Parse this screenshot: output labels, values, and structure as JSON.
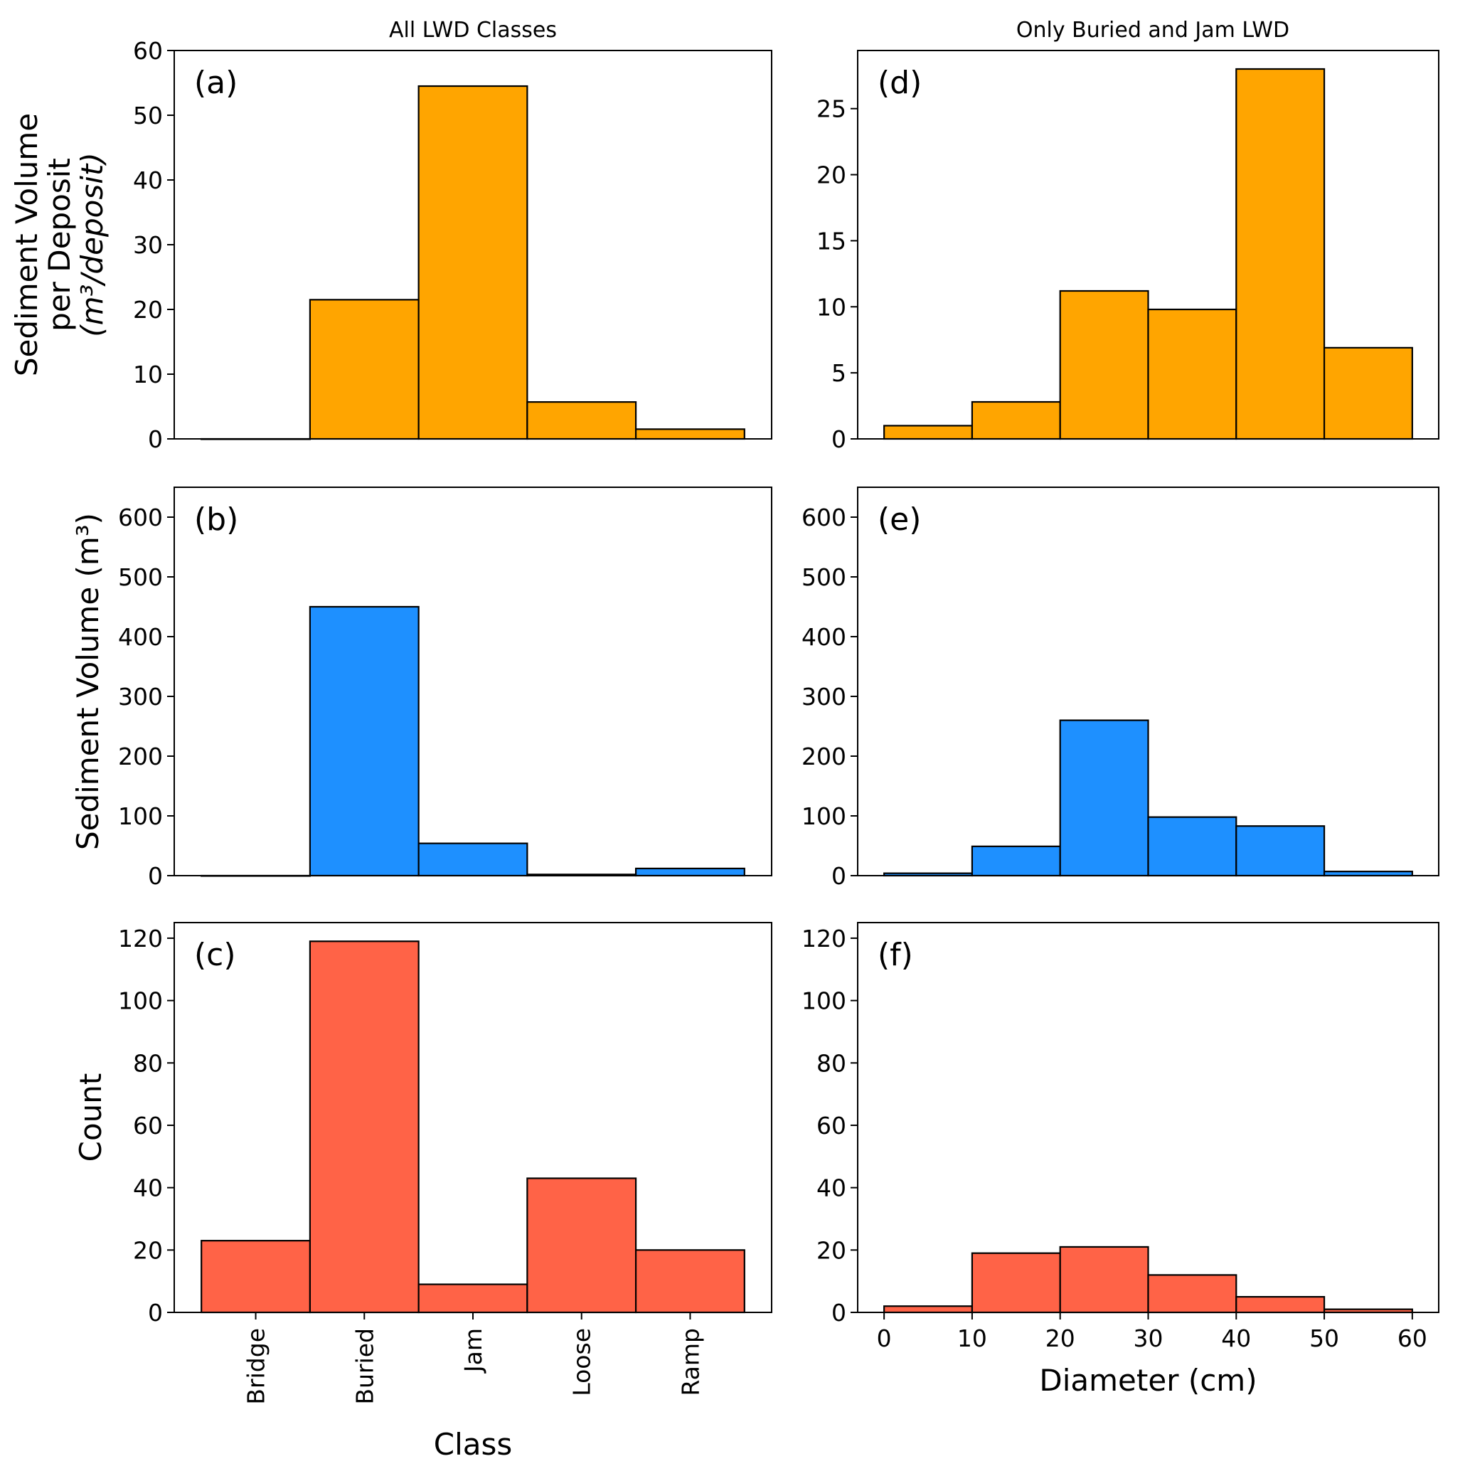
{
  "column_titles": [
    "All LWD Classes",
    "Only Buried and Jam LWD"
  ],
  "colors": {
    "orange": "#FFA500",
    "blue": "#1E90FF",
    "red": "#FF6347",
    "edge": "#000000"
  },
  "chart_data": [
    {
      "id": "a",
      "panel_label": "(a)",
      "type": "bar",
      "categories": [
        "Bridge",
        "Buried",
        "Jam",
        "Loose",
        "Ramp"
      ],
      "values": [
        0,
        21.5,
        54.5,
        5.7,
        1.5
      ],
      "color_key": "orange",
      "ylabel_lines": [
        "Sediment Volume",
        "per Deposit",
        "(m³/deposit)"
      ],
      "xlabel": "",
      "ylim": [
        0,
        60
      ],
      "yticks": [
        0,
        10,
        20,
        30,
        40,
        50,
        60
      ],
      "show_xticklabels": false
    },
    {
      "id": "b",
      "panel_label": "(b)",
      "type": "bar",
      "categories": [
        "Bridge",
        "Buried",
        "Jam",
        "Loose",
        "Ramp"
      ],
      "values": [
        0,
        450,
        54,
        2,
        12
      ],
      "color_key": "blue",
      "ylabel_lines": [
        "Sediment Volume (m³)"
      ],
      "xlabel": "",
      "ylim": [
        0,
        650
      ],
      "yticks": [
        0,
        100,
        200,
        300,
        400,
        500,
        600
      ],
      "show_xticklabels": false
    },
    {
      "id": "c",
      "panel_label": "(c)",
      "type": "bar",
      "categories": [
        "Bridge",
        "Buried",
        "Jam",
        "Loose",
        "Ramp"
      ],
      "values": [
        23,
        119,
        9,
        43,
        20
      ],
      "color_key": "red",
      "ylabel_lines": [
        "Count"
      ],
      "xlabel": "Class",
      "ylim": [
        0,
        125
      ],
      "yticks": [
        0,
        20,
        40,
        60,
        80,
        100,
        120
      ],
      "show_xticklabels": true
    },
    {
      "id": "d",
      "panel_label": "(d)",
      "type": "bar",
      "bin_edges": [
        0,
        10,
        20,
        30,
        40,
        50,
        60
      ],
      "values": [
        1.0,
        2.8,
        11.2,
        9.8,
        28.0,
        6.9
      ],
      "color_key": "orange",
      "ylabel_lines": [],
      "xlabel": "",
      "xlim": [
        -3,
        63
      ],
      "ylim": [
        0,
        29.4
      ],
      "yticks": [
        0,
        5,
        10,
        15,
        20,
        25
      ],
      "show_xticklabels": false
    },
    {
      "id": "e",
      "panel_label": "(e)",
      "type": "bar",
      "bin_edges": [
        0,
        10,
        20,
        30,
        40,
        50,
        60
      ],
      "values": [
        4,
        49,
        260,
        98,
        83,
        7
      ],
      "color_key": "blue",
      "ylabel_lines": [],
      "xlabel": "",
      "xlim": [
        -3,
        63
      ],
      "ylim": [
        0,
        650
      ],
      "yticks": [
        0,
        100,
        200,
        300,
        400,
        500,
        600
      ],
      "show_xticklabels": false
    },
    {
      "id": "f",
      "panel_label": "(f)",
      "type": "bar",
      "bin_edges": [
        0,
        10,
        20,
        30,
        40,
        50,
        60
      ],
      "values": [
        2,
        19,
        21,
        12,
        5,
        1
      ],
      "color_key": "red",
      "ylabel_lines": [],
      "xlabel": "Diameter (cm)",
      "xlim": [
        -3,
        63
      ],
      "ylim": [
        0,
        125
      ],
      "yticks": [
        0,
        20,
        40,
        60,
        80,
        100,
        120
      ],
      "xticks": [
        0,
        10,
        20,
        30,
        40,
        50,
        60
      ],
      "show_xticklabels": true
    }
  ]
}
